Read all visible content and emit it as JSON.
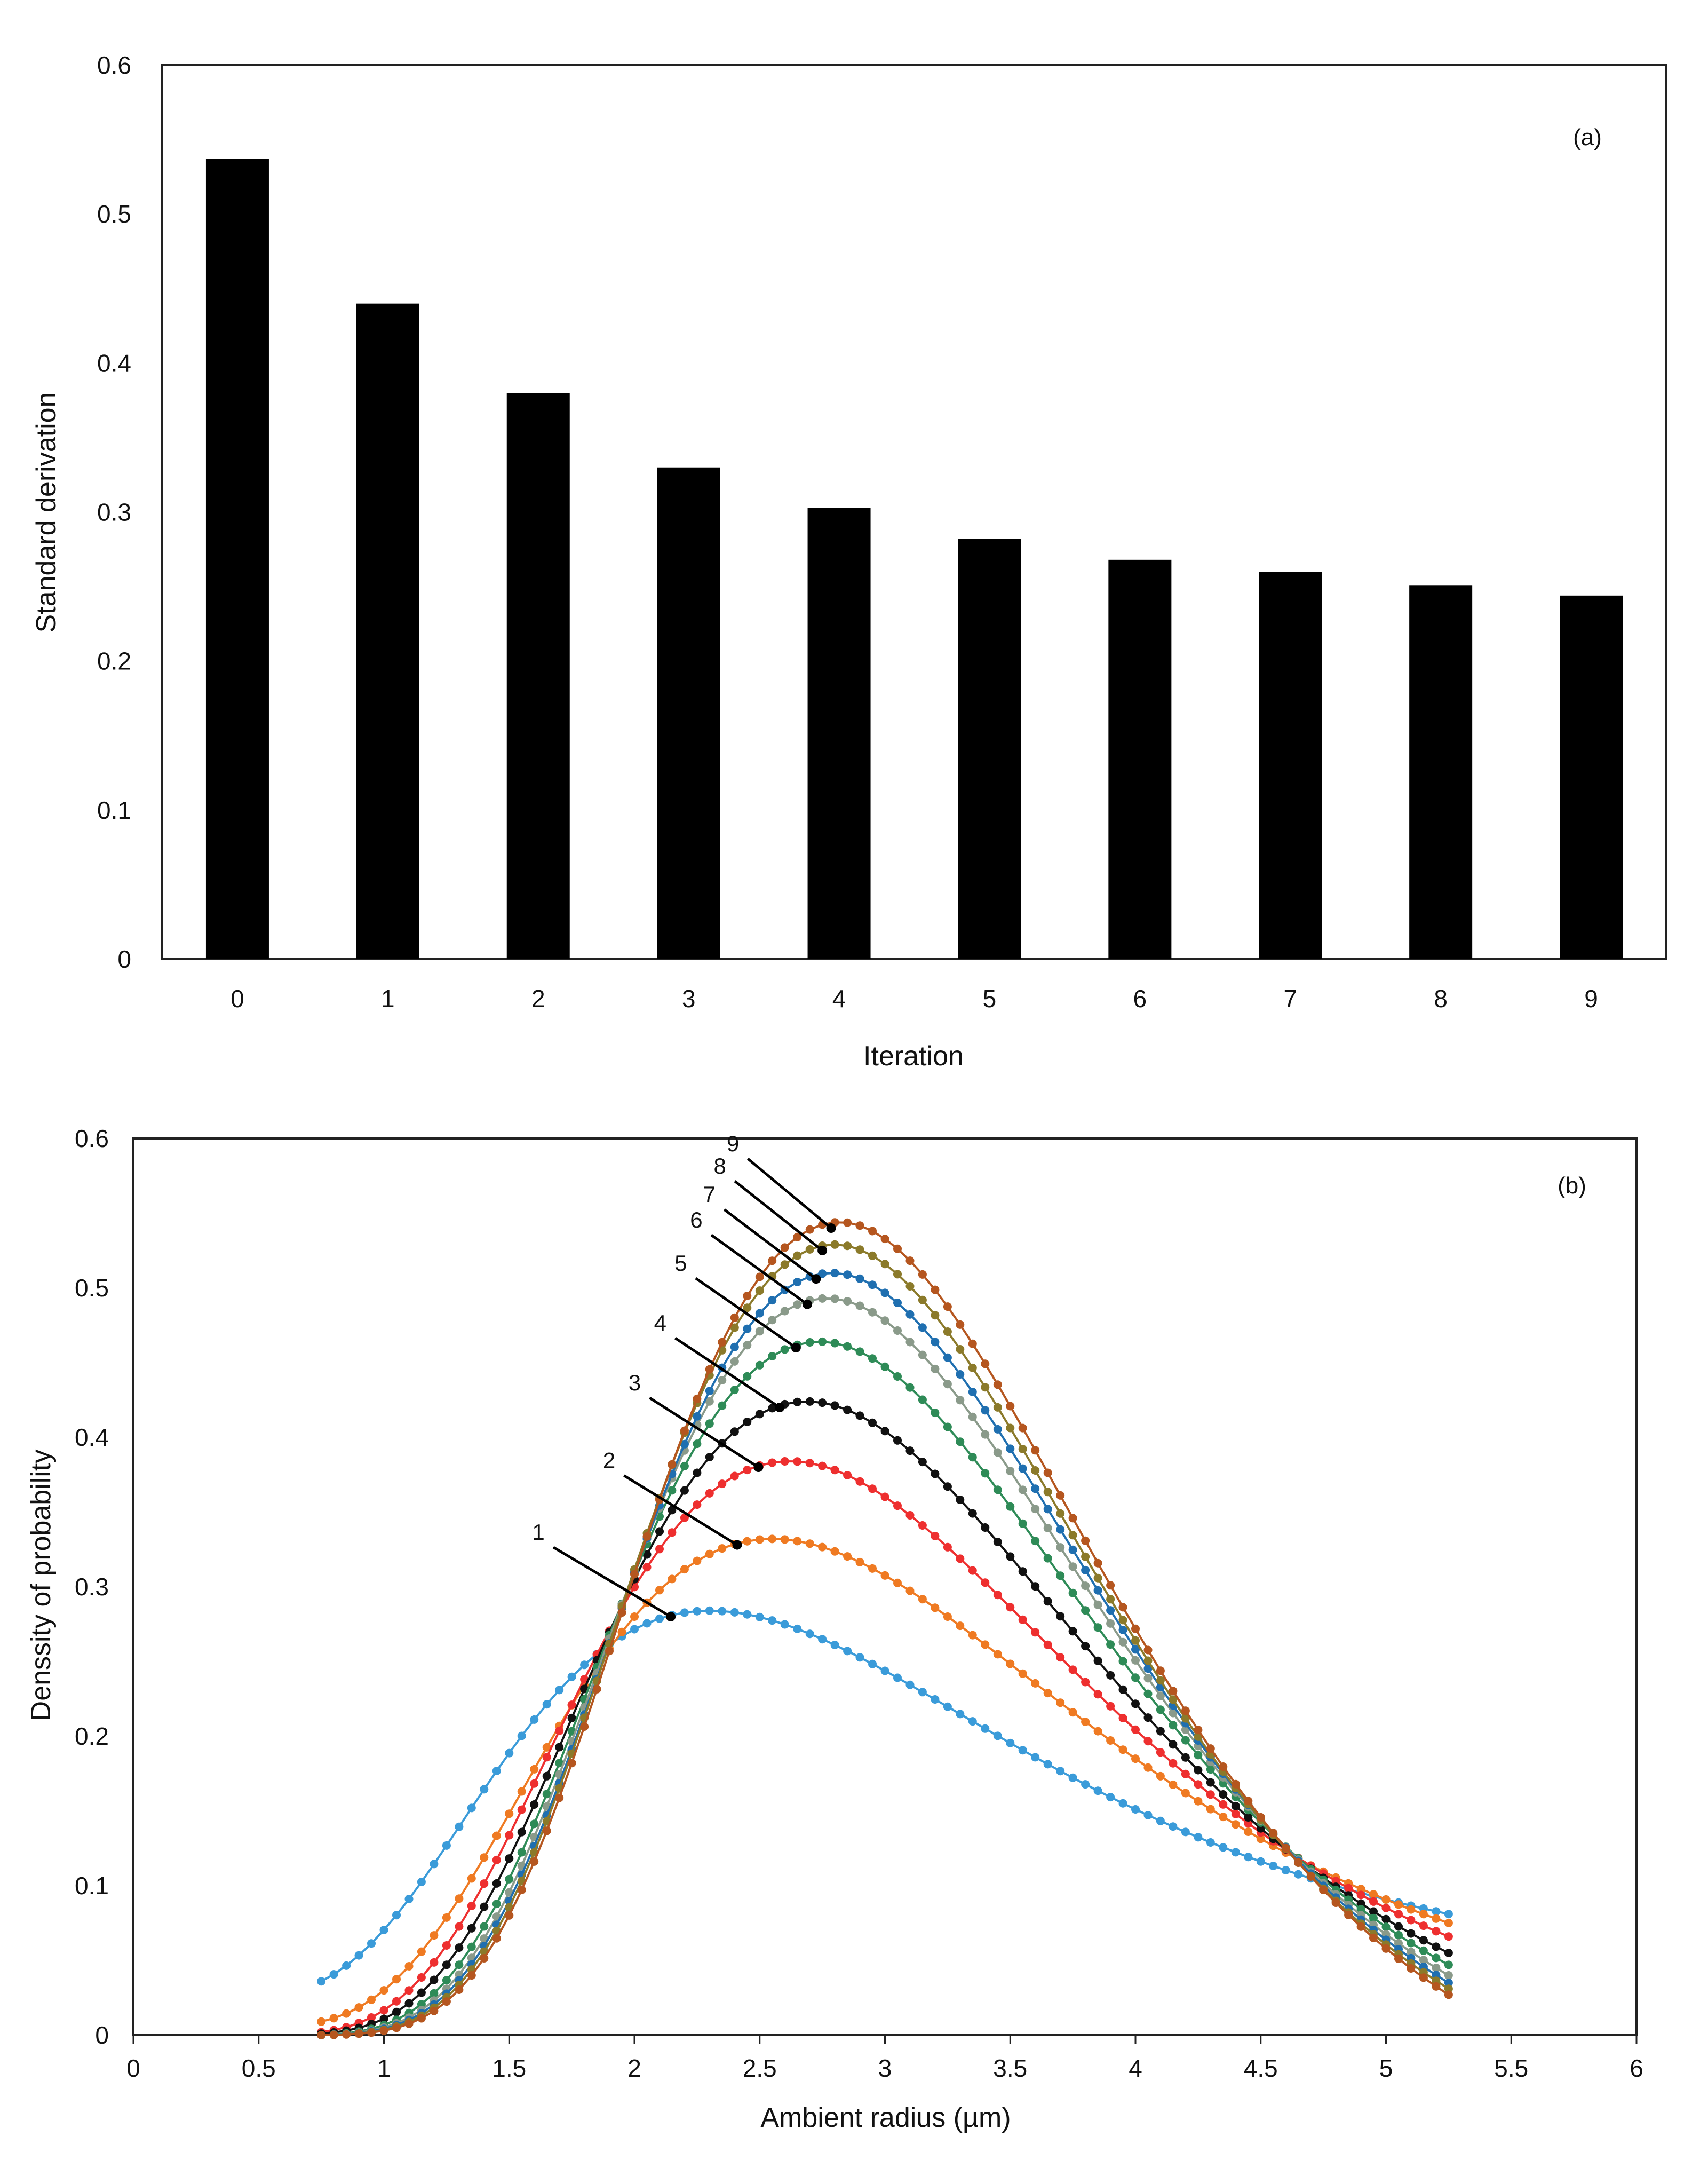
{
  "chart_data": [
    {
      "type": "bar",
      "panel_label": "(a)",
      "xlabel": "Iteration",
      "ylabel": "Standard derivation",
      "categories": [
        "0",
        "1",
        "2",
        "3",
        "4",
        "5",
        "6",
        "7",
        "8",
        "9"
      ],
      "values": [
        0.537,
        0.44,
        0.38,
        0.33,
        0.303,
        0.282,
        0.268,
        0.26,
        0.251,
        0.244
      ],
      "ylim": [
        0,
        0.6
      ],
      "yticks": [
        "0",
        "0.1",
        "0.2",
        "0.3",
        "0.4",
        "0.5",
        "0.6"
      ],
      "bar_color": "#000000"
    },
    {
      "type": "line",
      "panel_label": "(b)",
      "xlabel": "Ambient radius (µm)",
      "ylabel": "Denssity of probability",
      "xlim": [
        0,
        6
      ],
      "ylim": [
        0,
        0.6
      ],
      "xticks": [
        "0",
        "0.5",
        "1",
        "1.5",
        "2",
        "2.5",
        "3",
        "3.5",
        "4",
        "4.5",
        "5",
        "5.5",
        "6"
      ],
      "yticks": [
        "0",
        "0.1",
        "0.2",
        "0.3",
        "0.4",
        "0.5",
        "0.6"
      ],
      "x_range": [
        0.75,
        5.25
      ],
      "series": [
        {
          "name": "1",
          "color": "#3a9bd9",
          "peak": 0.284,
          "mode": 2.3,
          "y_start": 0.036,
          "y_end": 0.081
        },
        {
          "name": "2",
          "color": "#ef7a22",
          "peak": 0.332,
          "mode": 2.55,
          "y_start": 0.009,
          "y_end": 0.075
        },
        {
          "name": "3",
          "color": "#ee2f2f",
          "peak": 0.384,
          "mode": 2.62,
          "y_start": 0.002,
          "y_end": 0.066
        },
        {
          "name": "4",
          "color": "#111111",
          "peak": 0.424,
          "mode": 2.69,
          "y_start": 0.001,
          "y_end": 0.055
        },
        {
          "name": "5",
          "color": "#2e8b57",
          "peak": 0.464,
          "mode": 2.74,
          "y_start": 0.0,
          "y_end": 0.047
        },
        {
          "name": "6",
          "color": "#8a9a8a",
          "peak": 0.493,
          "mode": 2.77,
          "y_start": 0.0,
          "y_end": 0.04
        },
        {
          "name": "7",
          "color": "#1f6fb0",
          "peak": 0.51,
          "mode": 2.79,
          "y_start": 0.0,
          "y_end": 0.035
        },
        {
          "name": "8",
          "color": "#8b7a2a",
          "peak": 0.529,
          "mode": 2.8,
          "y_start": 0.0,
          "y_end": 0.031
        },
        {
          "name": "9",
          "color": "#b5561f",
          "peak": 0.544,
          "mode": 2.82,
          "y_start": 0.0,
          "y_end": 0.027
        }
      ]
    }
  ]
}
